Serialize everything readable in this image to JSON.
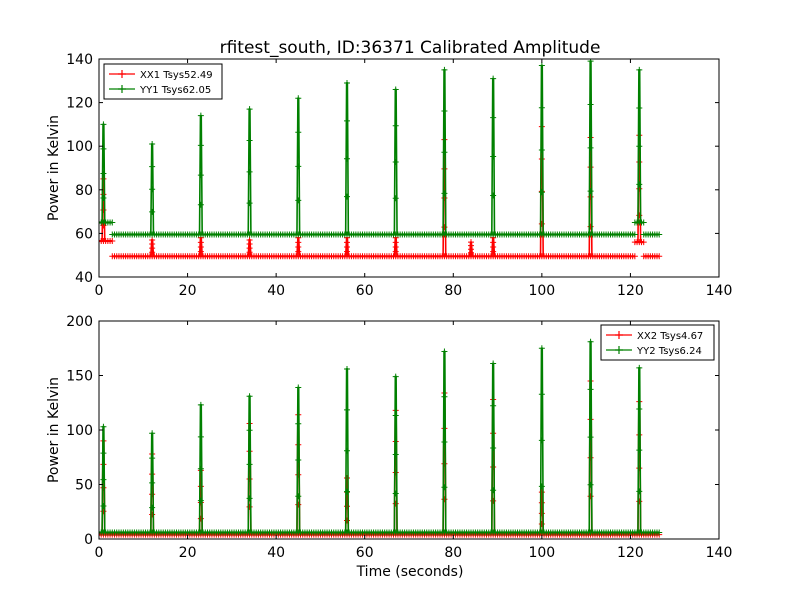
{
  "figure_title": "rfitest_south, ID:36371 Calibrated Amplitude",
  "chart_data": [
    {
      "type": "line",
      "title": "rfitest_south, ID:36371 Calibrated Amplitude",
      "xlabel": "",
      "ylabel": "Power in Kelvin",
      "xlim": [
        0,
        140
      ],
      "ylim": [
        40,
        140
      ],
      "xticks": [
        "0",
        "20",
        "40",
        "60",
        "80",
        "100",
        "120",
        "140"
      ],
      "yticks": [
        "40",
        "60",
        "80",
        "100",
        "120",
        "140"
      ],
      "legend_position": "upper-left",
      "grid": false,
      "series": [
        {
          "name": "XX1 Tsys52.49",
          "color": "#ff0000",
          "baseline": [
            {
              "x_start": 0,
              "x_end": 3,
              "y": 56.5
            },
            {
              "x_start": 3,
              "x_end": 121,
              "y": 49.5
            },
            {
              "x_start": 121,
              "x_end": 123,
              "y": 56
            },
            {
              "x_start": 123,
              "x_end": 126.5,
              "y": 49.5
            }
          ],
          "spikes": [
            {
              "x": 1,
              "y": 85
            },
            {
              "x": 12,
              "y": 57
            },
            {
              "x": 23,
              "y": 58
            },
            {
              "x": 34,
              "y": 57
            },
            {
              "x": 45,
              "y": 58
            },
            {
              "x": 56,
              "y": 58
            },
            {
              "x": 67,
              "y": 58
            },
            {
              "x": 78,
              "y": 103
            },
            {
              "x": 84,
              "y": 56
            },
            {
              "x": 89,
              "y": 58
            },
            {
              "x": 100,
              "y": 109
            },
            {
              "x": 111,
              "y": 104
            },
            {
              "x": 122,
              "y": 105
            }
          ]
        },
        {
          "name": "YY1 Tsys62.05",
          "color": "#008000",
          "baseline": [
            {
              "x_start": 0,
              "x_end": 3,
              "y": 65
            },
            {
              "x_start": 3,
              "x_end": 121,
              "y": 59.5
            },
            {
              "x_start": 121,
              "x_end": 123,
              "y": 65
            },
            {
              "x_start": 123,
              "x_end": 126.5,
              "y": 59.5
            }
          ],
          "spikes": [
            {
              "x": 1,
              "y": 110
            },
            {
              "x": 12,
              "y": 101
            },
            {
              "x": 23,
              "y": 114
            },
            {
              "x": 34,
              "y": 117
            },
            {
              "x": 45,
              "y": 122
            },
            {
              "x": 56,
              "y": 129
            },
            {
              "x": 67,
              "y": 126
            },
            {
              "x": 78,
              "y": 135
            },
            {
              "x": 89,
              "y": 131
            },
            {
              "x": 100,
              "y": 137
            },
            {
              "x": 111,
              "y": 139
            },
            {
              "x": 122,
              "y": 135
            }
          ]
        }
      ]
    },
    {
      "type": "line",
      "title": "",
      "xlabel": "Time (seconds)",
      "ylabel": "Power in Kelvin",
      "xlim": [
        0,
        140
      ],
      "ylim": [
        0,
        200
      ],
      "xticks": [
        "0",
        "20",
        "40",
        "60",
        "80",
        "100",
        "120",
        "140"
      ],
      "yticks": [
        "0",
        "50",
        "100",
        "150",
        "200"
      ],
      "legend_position": "upper-right",
      "grid": false,
      "series": [
        {
          "name": "XX2 Tsys4.67",
          "color": "#ff0000",
          "baseline": [
            {
              "x_start": 0,
              "x_end": 126.5,
              "y": 4
            }
          ],
          "spikes": [
            {
              "x": 1,
              "y": 90
            },
            {
              "x": 12,
              "y": 78
            },
            {
              "x": 23,
              "y": 63
            },
            {
              "x": 34,
              "y": 106
            },
            {
              "x": 45,
              "y": 114
            },
            {
              "x": 56,
              "y": 56
            },
            {
              "x": 67,
              "y": 118
            },
            {
              "x": 78,
              "y": 134
            },
            {
              "x": 89,
              "y": 128
            },
            {
              "x": 100,
              "y": 43
            },
            {
              "x": 111,
              "y": 145
            },
            {
              "x": 122,
              "y": 126
            }
          ]
        },
        {
          "name": "YY2 Tsys6.24",
          "color": "#008000",
          "baseline": [
            {
              "x_start": 0,
              "x_end": 126.5,
              "y": 6
            }
          ],
          "spikes": [
            {
              "x": 1,
              "y": 103
            },
            {
              "x": 12,
              "y": 97
            },
            {
              "x": 23,
              "y": 123
            },
            {
              "x": 34,
              "y": 131
            },
            {
              "x": 45,
              "y": 139
            },
            {
              "x": 56,
              "y": 156
            },
            {
              "x": 67,
              "y": 149
            },
            {
              "x": 78,
              "y": 172
            },
            {
              "x": 89,
              "y": 161
            },
            {
              "x": 100,
              "y": 175
            },
            {
              "x": 111,
              "y": 181
            },
            {
              "x": 122,
              "y": 157
            }
          ]
        }
      ]
    }
  ]
}
